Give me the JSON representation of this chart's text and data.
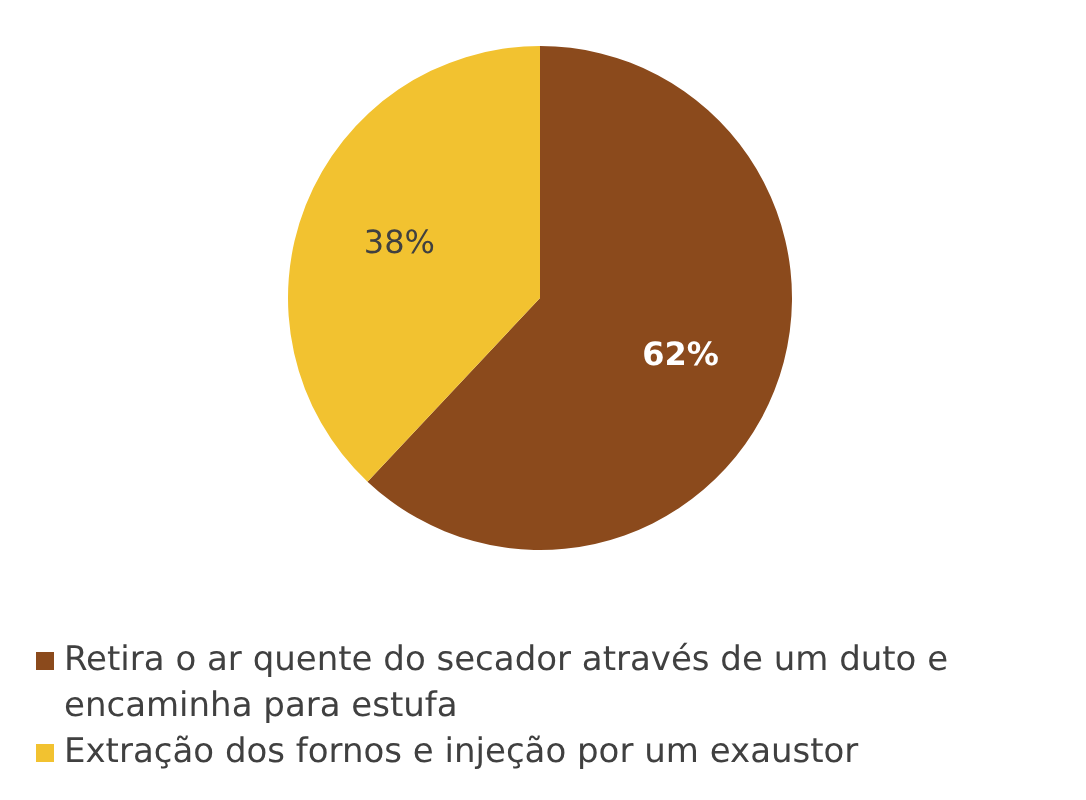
{
  "chart_data": {
    "type": "pie",
    "categories": [
      "Retira o ar quente do secador através de um duto e encaminha para estufa",
      "Extração dos fornos e injeção por um exaustor"
    ],
    "values": [
      62,
      38
    ],
    "colors": [
      "#8b4a1c",
      "#f2c230"
    ],
    "value_labels": [
      "62%",
      "38%"
    ],
    "legend": "bottom"
  }
}
